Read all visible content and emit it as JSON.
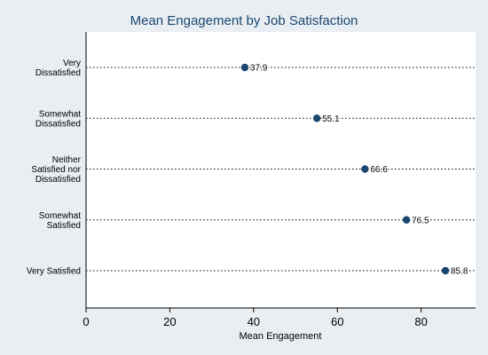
{
  "chart_data": {
    "type": "dot",
    "title": "Mean Engagement by Job Satisfaction",
    "xlabel": "Mean Engagement",
    "ylabel": "",
    "xlim": [
      0,
      93
    ],
    "xticks": [
      0,
      20,
      40,
      60,
      80
    ],
    "grid": false,
    "categories": [
      [
        "Very",
        "Dissatisfied"
      ],
      [
        "Somewhat",
        "Dissatisfied"
      ],
      [
        "Neither",
        "Satisfied nor",
        "Dissatisfied"
      ],
      [
        "Somewhat",
        "Satisfied"
      ],
      [
        "Very Satisfied"
      ]
    ],
    "values": [
      37.9,
      55.1,
      66.6,
      76.5,
      85.8
    ],
    "value_labels": [
      "37.9",
      "55.1",
      "66.6",
      "76.5",
      "85.8"
    ],
    "colors": {
      "background": "#e9eef3",
      "plot_background": "#ffffff",
      "marker": "#1a476f",
      "title": "#1a476f",
      "text": "#000000"
    }
  }
}
